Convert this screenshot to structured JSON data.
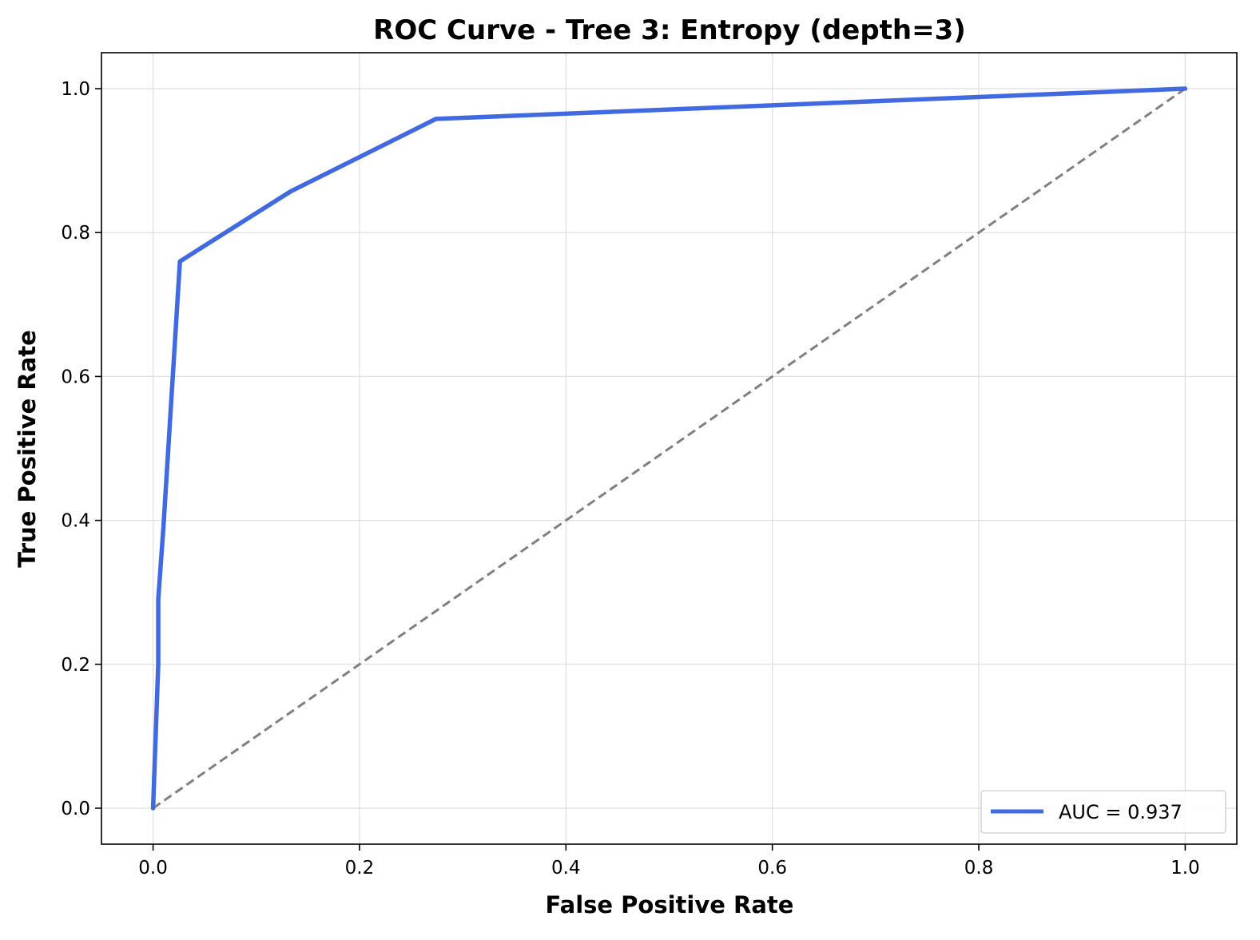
{
  "chart_data": {
    "type": "line",
    "title": "ROC Curve - Tree 3: Entropy (depth=3)",
    "xlabel": "False Positive Rate",
    "ylabel": "True Positive Rate",
    "xlim": [
      -0.05,
      1.05
    ],
    "ylim": [
      -0.05,
      1.05
    ],
    "xticks": [
      0.0,
      0.2,
      0.4,
      0.6,
      0.8,
      1.0
    ],
    "yticks": [
      0.0,
      0.2,
      0.4,
      0.6,
      0.8,
      1.0
    ],
    "xtick_labels": [
      "0.0",
      "0.2",
      "0.4",
      "0.6",
      "0.8",
      "1.0"
    ],
    "ytick_labels": [
      "0.0",
      "0.2",
      "0.4",
      "0.6",
      "0.8",
      "1.0"
    ],
    "grid": true,
    "legend_position": "lower-right",
    "series": [
      {
        "name": "AUC = 0.937",
        "color": "#4169e1",
        "x": [
          0.0,
          0.005,
          0.005,
          0.01,
          0.026,
          0.133,
          0.274,
          1.0
        ],
        "y": [
          0.0,
          0.2,
          0.29,
          0.39,
          0.76,
          0.857,
          0.958,
          1.0
        ]
      }
    ],
    "reference_line": {
      "color": "#808080",
      "style": "dashed",
      "x": [
        0.0,
        1.0
      ],
      "y": [
        0.0,
        1.0
      ]
    }
  }
}
